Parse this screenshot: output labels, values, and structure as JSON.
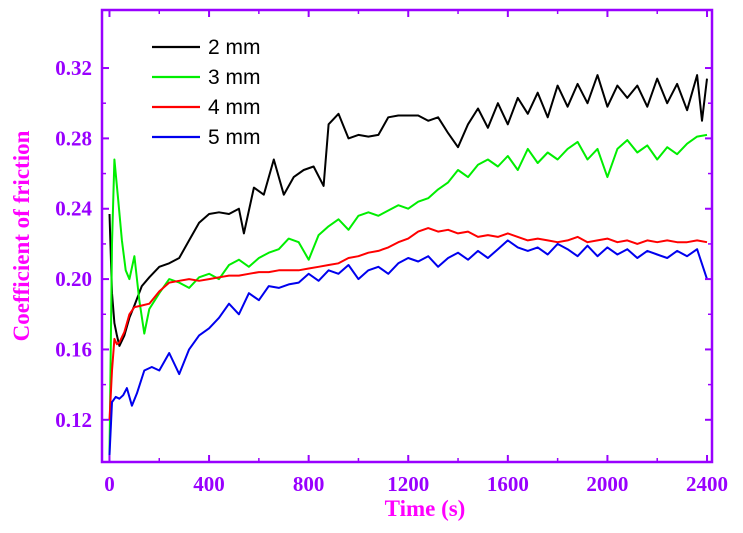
{
  "colors": {
    "axis": "#9900FF",
    "tick_labels": "#9900FF",
    "title_x": "#FF00FF",
    "title_y": "#FF00FF"
  },
  "chart_data": {
    "type": "line",
    "xlabel": "Time (s)",
    "ylabel": "Coefficient of friction",
    "xlim": [
      -30,
      2420
    ],
    "ylim": [
      0.096,
      0.353
    ],
    "xticks": [
      0,
      400,
      800,
      1200,
      1600,
      2000,
      2400
    ],
    "xtick_labels": [
      "0",
      "400",
      "800",
      "1200",
      "1600",
      "2000",
      "2400"
    ],
    "yticks": [
      0.12,
      0.16,
      0.2,
      0.24,
      0.28,
      0.32
    ],
    "ytick_labels": [
      "0.12",
      "0.16",
      "0.20",
      "0.24",
      "0.28",
      "0.32"
    ],
    "grid": false,
    "legend_position": "top-left",
    "series": [
      {
        "name": "2 mm",
        "color": "#000000",
        "x": [
          0,
          10,
          20,
          30,
          40,
          60,
          80,
          100,
          130,
          160,
          200,
          240,
          280,
          320,
          360,
          400,
          440,
          480,
          520,
          540,
          580,
          620,
          660,
          700,
          740,
          780,
          820,
          860,
          880,
          920,
          960,
          1000,
          1040,
          1080,
          1120,
          1160,
          1200,
          1240,
          1280,
          1320,
          1360,
          1400,
          1440,
          1480,
          1520,
          1560,
          1600,
          1640,
          1680,
          1720,
          1760,
          1800,
          1840,
          1880,
          1920,
          1960,
          2000,
          2040,
          2080,
          2120,
          2160,
          2200,
          2240,
          2280,
          2320,
          2360,
          2380,
          2400
        ],
        "y": [
          0.237,
          0.192,
          0.175,
          0.168,
          0.162,
          0.168,
          0.178,
          0.185,
          0.196,
          0.201,
          0.207,
          0.209,
          0.212,
          0.222,
          0.232,
          0.237,
          0.238,
          0.237,
          0.24,
          0.226,
          0.252,
          0.248,
          0.268,
          0.248,
          0.258,
          0.262,
          0.264,
          0.253,
          0.288,
          0.294,
          0.28,
          0.282,
          0.281,
          0.282,
          0.292,
          0.293,
          0.293,
          0.293,
          0.29,
          0.292,
          0.283,
          0.275,
          0.288,
          0.297,
          0.286,
          0.3,
          0.288,
          0.303,
          0.294,
          0.306,
          0.292,
          0.31,
          0.298,
          0.311,
          0.3,
          0.316,
          0.298,
          0.31,
          0.303,
          0.31,
          0.298,
          0.314,
          0.3,
          0.311,
          0.296,
          0.316,
          0.29,
          0.314
        ]
      },
      {
        "name": "3 mm",
        "color": "#00EE00",
        "x": [
          0,
          10,
          20,
          35,
          50,
          65,
          80,
          100,
          120,
          140,
          160,
          200,
          240,
          280,
          320,
          360,
          400,
          440,
          480,
          520,
          560,
          600,
          640,
          680,
          720,
          760,
          800,
          840,
          880,
          920,
          960,
          1000,
          1040,
          1080,
          1120,
          1160,
          1200,
          1240,
          1280,
          1320,
          1360,
          1400,
          1440,
          1480,
          1520,
          1560,
          1600,
          1640,
          1680,
          1720,
          1760,
          1800,
          1840,
          1880,
          1920,
          1960,
          2000,
          2040,
          2080,
          2120,
          2160,
          2200,
          2240,
          2280,
          2320,
          2360,
          2400
        ],
        "y": [
          0.1,
          0.22,
          0.268,
          0.245,
          0.222,
          0.205,
          0.2,
          0.213,
          0.188,
          0.169,
          0.183,
          0.192,
          0.2,
          0.198,
          0.195,
          0.201,
          0.203,
          0.2,
          0.208,
          0.211,
          0.207,
          0.212,
          0.215,
          0.217,
          0.223,
          0.221,
          0.211,
          0.225,
          0.23,
          0.234,
          0.228,
          0.236,
          0.238,
          0.236,
          0.239,
          0.242,
          0.24,
          0.244,
          0.246,
          0.251,
          0.255,
          0.262,
          0.258,
          0.265,
          0.268,
          0.264,
          0.27,
          0.262,
          0.274,
          0.266,
          0.272,
          0.268,
          0.274,
          0.278,
          0.268,
          0.274,
          0.258,
          0.274,
          0.279,
          0.272,
          0.276,
          0.268,
          0.275,
          0.271,
          0.277,
          0.281,
          0.282
        ]
      },
      {
        "name": "4 mm",
        "color": "#FF0000",
        "x": [
          0,
          10,
          20,
          30,
          40,
          60,
          80,
          100,
          130,
          160,
          200,
          240,
          280,
          320,
          360,
          400,
          440,
          480,
          520,
          560,
          600,
          640,
          680,
          720,
          760,
          800,
          840,
          880,
          920,
          960,
          1000,
          1040,
          1080,
          1120,
          1160,
          1200,
          1240,
          1280,
          1320,
          1360,
          1400,
          1440,
          1480,
          1520,
          1560,
          1600,
          1640,
          1680,
          1720,
          1760,
          1800,
          1840,
          1880,
          1920,
          1960,
          2000,
          2040,
          2080,
          2120,
          2160,
          2200,
          2240,
          2280,
          2320,
          2360,
          2400
        ],
        "y": [
          0.12,
          0.148,
          0.166,
          0.163,
          0.164,
          0.17,
          0.18,
          0.184,
          0.185,
          0.186,
          0.193,
          0.198,
          0.199,
          0.2,
          0.199,
          0.2,
          0.201,
          0.202,
          0.202,
          0.203,
          0.204,
          0.204,
          0.205,
          0.205,
          0.205,
          0.206,
          0.207,
          0.208,
          0.209,
          0.212,
          0.213,
          0.215,
          0.216,
          0.218,
          0.221,
          0.223,
          0.227,
          0.229,
          0.227,
          0.228,
          0.226,
          0.227,
          0.224,
          0.225,
          0.224,
          0.226,
          0.224,
          0.222,
          0.223,
          0.222,
          0.221,
          0.222,
          0.224,
          0.221,
          0.222,
          0.223,
          0.221,
          0.222,
          0.22,
          0.222,
          0.221,
          0.222,
          0.221,
          0.221,
          0.222,
          0.221
        ]
      },
      {
        "name": "5 mm",
        "color": "#0000EE",
        "x": [
          0,
          10,
          25,
          40,
          55,
          70,
          90,
          110,
          140,
          170,
          200,
          240,
          280,
          320,
          360,
          400,
          440,
          480,
          520,
          560,
          600,
          640,
          680,
          720,
          760,
          800,
          840,
          880,
          920,
          960,
          1000,
          1040,
          1080,
          1120,
          1160,
          1200,
          1240,
          1280,
          1320,
          1360,
          1400,
          1440,
          1480,
          1520,
          1560,
          1600,
          1640,
          1680,
          1720,
          1760,
          1800,
          1840,
          1880,
          1920,
          1960,
          2000,
          2040,
          2080,
          2120,
          2160,
          2200,
          2240,
          2280,
          2320,
          2360,
          2400
        ],
        "y": [
          0.1,
          0.13,
          0.133,
          0.132,
          0.134,
          0.138,
          0.128,
          0.135,
          0.148,
          0.15,
          0.148,
          0.158,
          0.146,
          0.16,
          0.168,
          0.172,
          0.178,
          0.186,
          0.18,
          0.192,
          0.188,
          0.196,
          0.195,
          0.197,
          0.198,
          0.203,
          0.199,
          0.205,
          0.203,
          0.208,
          0.2,
          0.205,
          0.207,
          0.203,
          0.209,
          0.212,
          0.21,
          0.213,
          0.207,
          0.212,
          0.215,
          0.211,
          0.216,
          0.212,
          0.217,
          0.222,
          0.218,
          0.216,
          0.218,
          0.214,
          0.22,
          0.217,
          0.213,
          0.219,
          0.213,
          0.218,
          0.214,
          0.217,
          0.212,
          0.216,
          0.214,
          0.212,
          0.216,
          0.213,
          0.217,
          0.2
        ]
      }
    ]
  }
}
